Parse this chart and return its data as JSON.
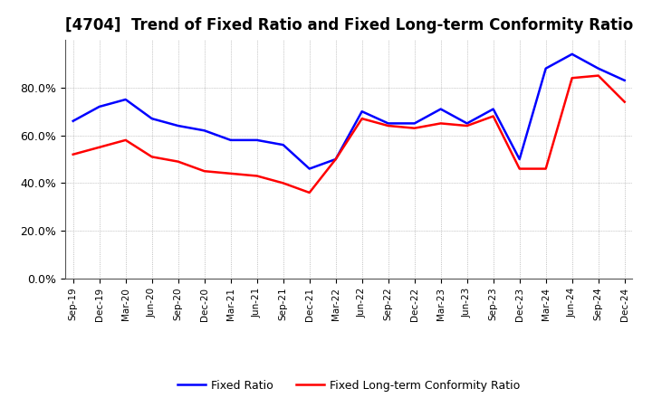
{
  "title": "[4704]  Trend of Fixed Ratio and Fixed Long-term Conformity Ratio",
  "x_labels": [
    "Sep-19",
    "Dec-19",
    "Mar-20",
    "Jun-20",
    "Sep-20",
    "Dec-20",
    "Mar-21",
    "Jun-21",
    "Sep-21",
    "Dec-21",
    "Mar-22",
    "Jun-22",
    "Sep-22",
    "Dec-22",
    "Mar-23",
    "Jun-23",
    "Sep-23",
    "Dec-23",
    "Mar-24",
    "Jun-24",
    "Sep-24",
    "Dec-24"
  ],
  "fixed_ratio": [
    0.66,
    0.72,
    0.75,
    0.67,
    0.64,
    0.62,
    0.58,
    0.58,
    0.56,
    0.46,
    0.5,
    0.7,
    0.65,
    0.65,
    0.71,
    0.65,
    0.71,
    0.5,
    0.88,
    0.94,
    0.88,
    0.83
  ],
  "fixed_lt_ratio": [
    0.52,
    0.55,
    0.58,
    0.51,
    0.49,
    0.45,
    0.44,
    0.43,
    0.4,
    0.36,
    0.5,
    0.67,
    0.64,
    0.63,
    0.65,
    0.64,
    0.68,
    0.46,
    0.46,
    0.84,
    0.85,
    0.74
  ],
  "fixed_ratio_color": "#0000FF",
  "fixed_lt_ratio_color": "#FF0000",
  "ylim": [
    0.0,
    1.0
  ],
  "yticks": [
    0.0,
    0.2,
    0.4,
    0.6,
    0.8
  ],
  "background_color": "#FFFFFF",
  "grid_color": "#AAAAAA",
  "title_fontsize": 12,
  "legend_fixed": "Fixed Ratio",
  "legend_lt": "Fixed Long-term Conformity Ratio",
  "line_width": 1.8
}
